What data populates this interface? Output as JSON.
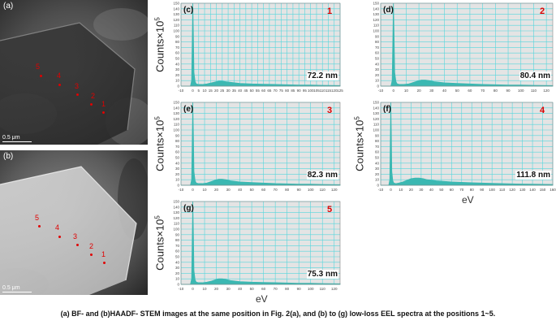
{
  "micrographs": [
    {
      "label": "(a)",
      "scale": "0.5 μm",
      "mode": "BF",
      "points": [
        {
          "label": "5",
          "dot": [
            50,
            93
          ],
          "text": [
            44,
            77
          ]
        },
        {
          "label": "4",
          "dot": [
            73,
            104
          ],
          "text": [
            70,
            88
          ]
        },
        {
          "label": "3",
          "dot": [
            95,
            116
          ],
          "text": [
            92,
            101
          ]
        },
        {
          "label": "2",
          "dot": [
            112,
            128
          ],
          "text": [
            112,
            113
          ]
        },
        {
          "label": "1",
          "dot": [
            127,
            138
          ],
          "text": [
            125,
            123
          ]
        }
      ]
    },
    {
      "label": "(b)",
      "scale": "0.5 μm",
      "mode": "HAADF",
      "points": [
        {
          "label": "5",
          "dot": [
            48,
            93
          ],
          "text": [
            43,
            78
          ]
        },
        {
          "label": "4",
          "dot": [
            73,
            106
          ],
          "text": [
            68,
            90
          ]
        },
        {
          "label": "3",
          "dot": [
            95,
            116
          ],
          "text": [
            90,
            101
          ]
        },
        {
          "label": "2",
          "dot": [
            112,
            128
          ],
          "text": [
            110,
            113
          ]
        },
        {
          "label": "1",
          "dot": [
            128,
            138
          ],
          "text": [
            125,
            123
          ]
        }
      ]
    }
  ],
  "chart_data": [
    {
      "type": "area",
      "panel": "(c)",
      "position": "1",
      "thickness": "72.2 nm",
      "ylabel": "Counts×10^5",
      "xlabel": "",
      "xlim": [
        -10,
        125
      ],
      "ylim": [
        0,
        150
      ],
      "xticks": [
        -10,
        0,
        5,
        10,
        15,
        20,
        25,
        30,
        35,
        40,
        45,
        50,
        55,
        60,
        65,
        70,
        75,
        80,
        85,
        90,
        95,
        100,
        105,
        110,
        115,
        120,
        125
      ],
      "yticks": [
        0,
        10,
        20,
        30,
        40,
        50,
        60,
        70,
        80,
        90,
        100,
        110,
        120,
        130,
        140,
        150
      ],
      "x": [
        -10,
        -2,
        -1,
        0,
        0.5,
        1,
        2,
        3,
        5,
        8,
        12,
        16,
        20,
        22,
        25,
        28,
        32,
        40,
        50,
        60,
        70,
        80,
        90,
        100,
        110,
        125
      ],
      "y": [
        0,
        0,
        10,
        150,
        95,
        25,
        8,
        4,
        3,
        3,
        4,
        6,
        8,
        9,
        9,
        8,
        7,
        5,
        4,
        3.5,
        3,
        2.5,
        2,
        2,
        1.5,
        1
      ]
    },
    {
      "type": "area",
      "panel": "(d)",
      "position": "2",
      "thickness": "80.4 nm",
      "ylabel": "",
      "xlabel": "",
      "xlim": [
        -10,
        125
      ],
      "ylim": [
        0,
        150
      ],
      "xticks": [
        -10,
        0,
        10,
        20,
        30,
        40,
        50,
        60,
        70,
        80,
        90,
        100,
        110,
        120
      ],
      "yticks": [
        0,
        10,
        20,
        30,
        40,
        50,
        60,
        70,
        80,
        90,
        100,
        110,
        120,
        130,
        140,
        150
      ],
      "x": [
        -10,
        -2,
        -1,
        0,
        0.5,
        1,
        2,
        3,
        5,
        8,
        12,
        16,
        20,
        22,
        25,
        28,
        32,
        40,
        50,
        60,
        70,
        80,
        90,
        100,
        110,
        125
      ],
      "y": [
        0,
        0,
        10,
        150,
        95,
        25,
        8,
        4,
        3,
        3,
        4,
        7,
        10,
        11,
        11,
        10,
        8,
        6,
        5,
        4,
        3,
        2.5,
        2,
        2,
        1.5,
        1
      ]
    },
    {
      "type": "area",
      "panel": "(e)",
      "position": "3",
      "thickness": "82.3 nm",
      "ylabel": "Counts×10^5",
      "xlabel": "",
      "xlim": [
        -10,
        125
      ],
      "ylim": [
        0,
        150
      ],
      "xticks": [
        -10,
        0,
        10,
        20,
        30,
        40,
        50,
        60,
        70,
        80,
        90,
        100,
        110,
        120
      ],
      "yticks": [
        0,
        10,
        20,
        30,
        40,
        50,
        60,
        70,
        80,
        90,
        100,
        110,
        120,
        130,
        140,
        150
      ],
      "x": [
        -10,
        -2,
        -1,
        0,
        0.5,
        1,
        2,
        3,
        5,
        8,
        12,
        16,
        20,
        22,
        25,
        28,
        32,
        40,
        50,
        60,
        70,
        80,
        90,
        100,
        110,
        125
      ],
      "y": [
        0,
        0,
        10,
        150,
        95,
        25,
        8,
        4,
        3,
        3,
        4,
        7,
        10,
        11,
        11,
        10,
        8,
        6,
        5,
        4,
        3,
        2.5,
        2,
        2,
        1.5,
        1
      ]
    },
    {
      "type": "area",
      "panel": "(f)",
      "position": "4",
      "thickness": "111.8 nm",
      "ylabel": "Counts×10^5",
      "xlabel": "eV",
      "xlim": [
        -10,
        160
      ],
      "ylim": [
        0,
        150
      ],
      "xticks": [
        -10,
        0,
        10,
        20,
        30,
        40,
        50,
        60,
        70,
        80,
        90,
        100,
        110,
        120,
        130,
        140,
        150,
        160
      ],
      "yticks": [
        0,
        10,
        20,
        30,
        40,
        50,
        60,
        70,
        80,
        90,
        100,
        110,
        120,
        130,
        140,
        150
      ],
      "x": [
        -10,
        -2,
        -1,
        0,
        0.5,
        1,
        2,
        3,
        5,
        8,
        12,
        16,
        20,
        24,
        28,
        32,
        36,
        45,
        60,
        80,
        100,
        120,
        140,
        160
      ],
      "y": [
        0,
        0,
        10,
        150,
        95,
        25,
        8,
        4,
        3,
        4,
        6,
        9,
        12,
        13,
        13,
        12,
        10,
        8,
        6,
        4.5,
        3.5,
        2.5,
        2,
        1.5
      ]
    },
    {
      "type": "area",
      "panel": "(g)",
      "position": "5",
      "thickness": "75.3 nm",
      "ylabel": "Counts×10^5",
      "xlabel": "eV",
      "xlim": [
        -10,
        125
      ],
      "ylim": [
        0,
        150
      ],
      "xticks": [
        -10,
        0,
        10,
        20,
        30,
        40,
        50,
        60,
        70,
        80,
        90,
        100,
        110,
        120
      ],
      "yticks": [
        0,
        10,
        20,
        30,
        40,
        50,
        60,
        70,
        80,
        90,
        100,
        110,
        120,
        130,
        140,
        150
      ],
      "x": [
        -10,
        -2,
        -1,
        0,
        0.5,
        1,
        2,
        3,
        5,
        8,
        12,
        16,
        20,
        22,
        25,
        28,
        32,
        40,
        50,
        60,
        70,
        80,
        90,
        100,
        110,
        125
      ],
      "y": [
        0,
        0,
        10,
        150,
        95,
        25,
        8,
        4,
        3,
        3,
        4,
        6,
        9,
        10,
        10,
        9,
        7,
        5,
        4,
        3.5,
        3,
        2.5,
        2,
        2,
        1.5,
        1
      ]
    }
  ],
  "colors": {
    "plot_bg": "#e4e4e4",
    "grid": "#55d6dc",
    "fill": "#3bb8b2",
    "marker": "#e00000"
  },
  "caption": "(a) BF- and (b)HAADF- STEM images at the same position in Fig. 2(a), and (b) to (g) low-loss EEL spectra at the positions 1~5."
}
